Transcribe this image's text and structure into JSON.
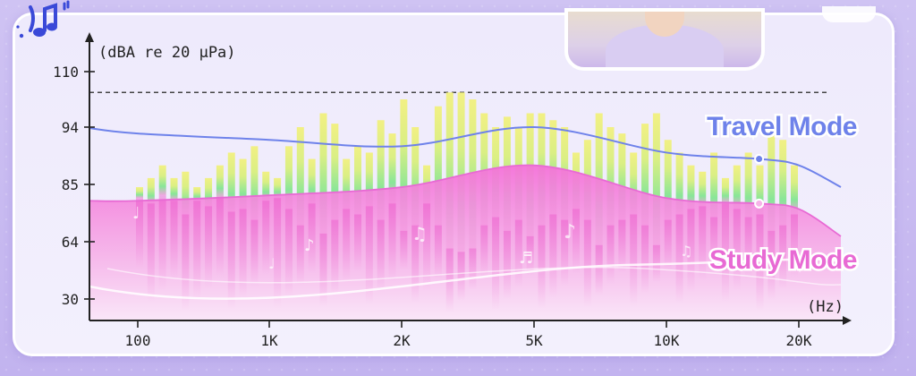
{
  "chart_data": {
    "type": "bar",
    "y_unit": "(dBA re 20 µPa)",
    "x_unit": "(Hz)",
    "x_ticks": [
      "100",
      "1K",
      "2K",
      "5K",
      "10K",
      "20K"
    ],
    "y_ticks": [
      "110",
      "94",
      "85",
      "64",
      "30"
    ],
    "reference_line": 104,
    "spectrum_bars": [
      [
        84,
        80
      ],
      [
        86,
        78
      ],
      [
        88,
        81
      ],
      [
        86,
        79
      ],
      [
        87,
        74
      ],
      [
        84,
        79
      ],
      [
        86,
        77
      ],
      [
        88,
        80
      ],
      [
        90,
        75
      ],
      [
        89,
        76
      ],
      [
        91,
        72
      ],
      [
        87,
        79
      ],
      [
        86,
        80
      ],
      [
        91,
        76
      ],
      [
        94,
        70
      ],
      [
        89,
        78
      ],
      [
        98,
        67
      ],
      [
        95,
        72
      ],
      [
        89,
        76
      ],
      [
        91,
        74
      ],
      [
        90,
        77
      ],
      [
        96,
        72
      ],
      [
        93,
        78
      ],
      [
        102,
        68
      ],
      [
        94,
        70
      ],
      [
        88,
        78
      ],
      [
        100,
        70
      ],
      [
        104,
        60
      ],
      [
        104,
        58
      ],
      [
        102,
        60
      ],
      [
        98,
        70
      ],
      [
        94,
        73
      ],
      [
        97,
        68
      ],
      [
        94,
        72
      ],
      [
        98,
        66
      ],
      [
        98,
        70
      ],
      [
        96,
        74
      ],
      [
        94,
        72
      ],
      [
        90,
        76
      ],
      [
        92,
        72
      ],
      [
        98,
        62
      ],
      [
        94,
        70
      ],
      [
        93,
        72
      ],
      [
        90,
        74
      ],
      [
        95,
        70
      ],
      [
        98,
        62
      ],
      [
        92,
        72
      ],
      [
        90,
        74
      ],
      [
        88,
        76
      ],
      [
        87,
        77
      ],
      [
        90,
        73
      ],
      [
        86,
        78
      ],
      [
        88,
        76
      ],
      [
        90,
        73
      ],
      [
        88,
        74
      ],
      [
        94,
        68
      ],
      [
        92,
        70
      ],
      [
        88,
        74
      ]
    ],
    "series": [
      {
        "name": "Travel Mode",
        "color": "#6e82ea",
        "points": [
          [
            100,
            93
          ],
          [
            1000,
            92
          ],
          [
            2000,
            91
          ],
          [
            5000,
            94
          ],
          [
            10000,
            90
          ],
          [
            17000,
            89
          ],
          [
            20000,
            88
          ]
        ]
      },
      {
        "name": "Study Mode",
        "color": "#e86ad4",
        "points": [
          [
            100,
            79
          ],
          [
            1000,
            81
          ],
          [
            2000,
            84
          ],
          [
            5000,
            88
          ],
          [
            10000,
            80
          ],
          [
            17000,
            78
          ],
          [
            20000,
            76
          ]
        ]
      }
    ]
  }
}
